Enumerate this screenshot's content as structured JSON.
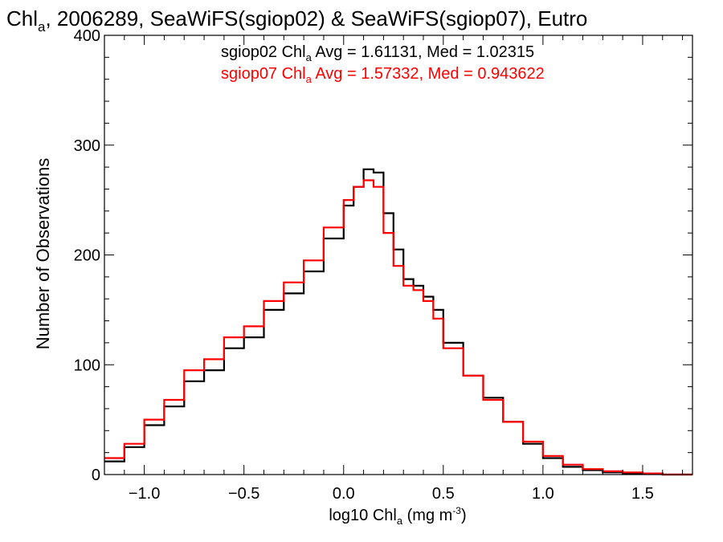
{
  "chart_data": {
    "type": "line",
    "step": true,
    "title": {
      "prefix": "Chl",
      "sub": "a",
      "rest": ", 2006289, SeaWiFS(sgiop02) & SeaWiFS(sgiop07), Eutro"
    },
    "xlabel": {
      "prefix": "log10 Chl",
      "sub": "a",
      "mid": " (mg m",
      "sup": "-3",
      "end": ")"
    },
    "ylabel": "Number of Observations",
    "xlim": [
      -1.2,
      1.75
    ],
    "ylim": [
      0,
      400
    ],
    "xticks": [
      -1.0,
      -0.5,
      0.0,
      0.5,
      1.0,
      1.5
    ],
    "xtick_labels": [
      "−1.0",
      "−0.5",
      "0.0",
      "0.5",
      "1.0",
      "1.5"
    ],
    "yticks": [
      0,
      100,
      200,
      300,
      400
    ],
    "ytick_labels": [
      "0",
      "100",
      "200",
      "300",
      "400"
    ],
    "grid": false,
    "legend": [
      {
        "name": "sgiop02",
        "prefix": "sgiop02 Chl",
        "sub": "a",
        "rest": " Avg = 1.61131, Med = 1.02315",
        "color": "#000000"
      },
      {
        "name": "sgiop07",
        "prefix": "sgiop07 Chl",
        "sub": "a",
        "rest": " Avg = 1.57332, Med = 0.943622",
        "color": "#ff0000"
      }
    ],
    "legend_position": "top-center",
    "series": [
      {
        "name": "sgiop02",
        "color": "#000000",
        "x": [
          -1.2,
          -1.1,
          -1.0,
          -0.9,
          -0.8,
          -0.7,
          -0.6,
          -0.5,
          -0.4,
          -0.3,
          -0.2,
          -0.1,
          0.0,
          0.05,
          0.1,
          0.15,
          0.2,
          0.25,
          0.3,
          0.35,
          0.4,
          0.45,
          0.5,
          0.6,
          0.7,
          0.8,
          0.9,
          1.0,
          1.1,
          1.2,
          1.3,
          1.4,
          1.5,
          1.6,
          1.75
        ],
        "y": [
          12,
          25,
          45,
          62,
          85,
          95,
          115,
          125,
          150,
          165,
          185,
          215,
          245,
          262,
          278,
          275,
          238,
          205,
          178,
          172,
          162,
          150,
          120,
          90,
          70,
          48,
          28,
          15,
          7,
          4,
          2,
          1,
          1,
          0,
          0
        ]
      },
      {
        "name": "sgiop07",
        "color": "#ff0000",
        "x": [
          -1.2,
          -1.1,
          -1.0,
          -0.9,
          -0.8,
          -0.7,
          -0.6,
          -0.5,
          -0.4,
          -0.3,
          -0.2,
          -0.1,
          0.0,
          0.05,
          0.1,
          0.15,
          0.2,
          0.25,
          0.3,
          0.35,
          0.4,
          0.45,
          0.5,
          0.6,
          0.7,
          0.8,
          0.9,
          1.0,
          1.1,
          1.2,
          1.3,
          1.4,
          1.5,
          1.6,
          1.75
        ],
        "y": [
          15,
          28,
          50,
          68,
          95,
          105,
          125,
          135,
          158,
          175,
          195,
          225,
          250,
          262,
          268,
          262,
          220,
          190,
          172,
          168,
          158,
          142,
          115,
          90,
          68,
          48,
          30,
          17,
          9,
          5,
          3,
          2,
          1,
          0,
          0
        ]
      }
    ]
  }
}
